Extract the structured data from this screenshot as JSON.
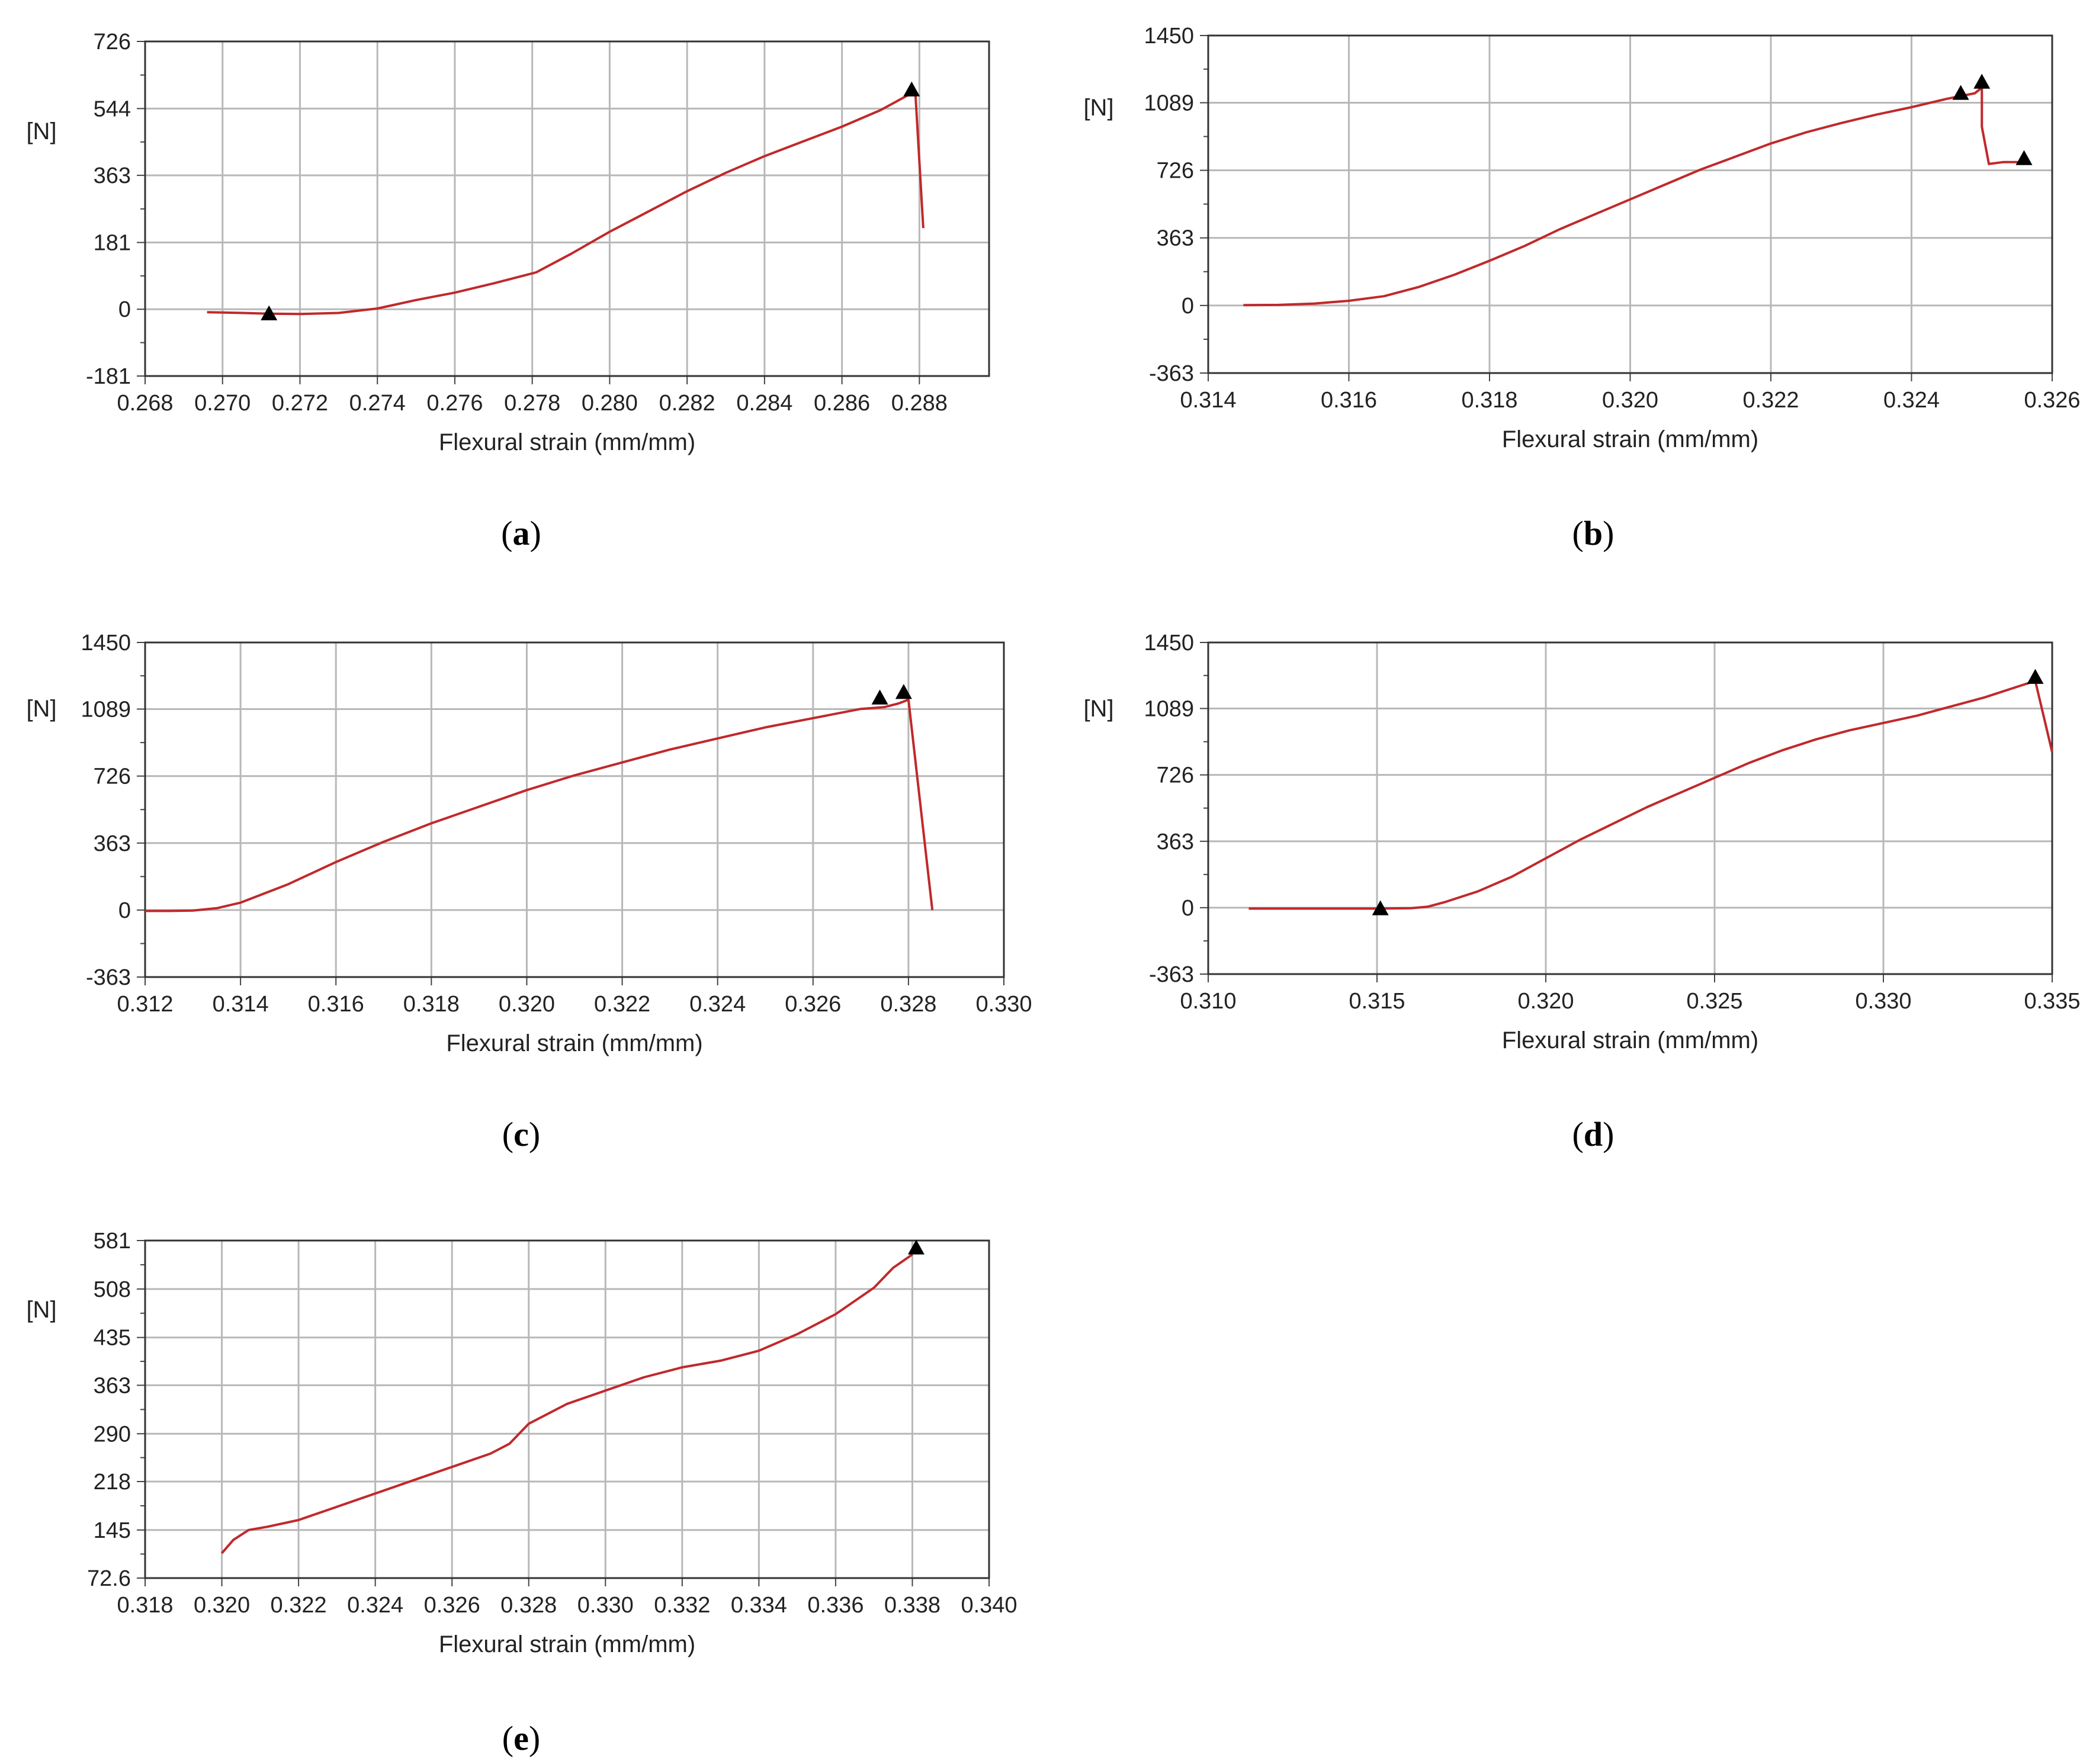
{
  "chart_data": [
    {
      "type": "line",
      "panel": "a",
      "xlabel": "Flexural strain (mm/mm)",
      "ylabel": "[N]",
      "xlim": [
        0.268,
        0.2898
      ],
      "ylim": [
        -181,
        726
      ],
      "x_ticks": [
        "0.268",
        "0.270",
        "0.272",
        "0.274",
        "0.276",
        "0.278",
        "0.280",
        "0.282",
        "0.284",
        "0.286",
        "0.288"
      ],
      "y_ticks": [
        "-181",
        "0",
        "181",
        "363",
        "544",
        "726"
      ],
      "grid": true,
      "series": [
        {
          "color": "#c0292b",
          "x": [
            0.2696,
            0.2705,
            0.2712,
            0.272,
            0.273,
            0.274,
            0.275,
            0.276,
            0.277,
            0.2781,
            0.279,
            0.28,
            0.281,
            0.282,
            0.283,
            0.284,
            0.285,
            0.286,
            0.287,
            0.2877,
            0.2879,
            0.2881
          ],
          "y": [
            -8,
            -10,
            -12,
            -13,
            -10,
            2,
            25,
            45,
            70,
            100,
            150,
            210,
            265,
            320,
            370,
            415,
            455,
            495,
            540,
            580,
            580,
            220
          ]
        }
      ],
      "markers": [
        {
          "x": 0.2712,
          "y": -12
        },
        {
          "x": 0.2878,
          "y": 595
        }
      ]
    },
    {
      "type": "line",
      "panel": "b",
      "xlabel": "Flexural strain (mm/mm)",
      "ylabel": "[N]",
      "xlim": [
        0.314,
        0.326
      ],
      "ylim": [
        -363,
        1450
      ],
      "x_ticks": [
        "0.314",
        "0.316",
        "0.318",
        "0.320",
        "0.322",
        "0.324",
        "0.326"
      ],
      "y_ticks": [
        "-363",
        "0",
        "363",
        "726",
        "1089",
        "1450"
      ],
      "grid": true,
      "series": [
        {
          "color": "#c0292b",
          "x": [
            0.3145,
            0.315,
            0.3155,
            0.316,
            0.3165,
            0.317,
            0.3175,
            0.318,
            0.3185,
            0.319,
            0.3195,
            0.32,
            0.3205,
            0.321,
            0.3215,
            0.322,
            0.3225,
            0.323,
            0.3235,
            0.324,
            0.3245,
            0.3249,
            0.325,
            0.325,
            0.3251,
            0.3253,
            0.3255,
            0.3256
          ],
          "y": [
            2,
            3,
            10,
            25,
            50,
            100,
            165,
            240,
            320,
            410,
            490,
            570,
            650,
            730,
            800,
            870,
            930,
            980,
            1025,
            1065,
            1110,
            1140,
            1170,
            960,
            760,
            770,
            770,
            760
          ]
        }
      ],
      "markers": [
        {
          "x": 0.3247,
          "y": 1140
        },
        {
          "x": 0.325,
          "y": 1200
        },
        {
          "x": 0.3256,
          "y": 790
        }
      ]
    },
    {
      "type": "line",
      "panel": "c",
      "xlabel": "Flexural strain (mm/mm)",
      "ylabel": "[N]",
      "xlim": [
        0.312,
        0.33
      ],
      "ylim": [
        -363,
        1450
      ],
      "x_ticks": [
        "0.312",
        "0.314",
        "0.316",
        "0.318",
        "0.320",
        "0.322",
        "0.324",
        "0.326",
        "0.328",
        "0.330"
      ],
      "y_ticks": [
        "-363",
        "0",
        "363",
        "726",
        "1089",
        "1450"
      ],
      "grid": true,
      "series": [
        {
          "color": "#c0292b",
          "x": [
            0.312,
            0.3125,
            0.313,
            0.3135,
            0.314,
            0.315,
            0.316,
            0.317,
            0.318,
            0.319,
            0.32,
            0.321,
            0.322,
            0.323,
            0.324,
            0.325,
            0.326,
            0.327,
            0.3275,
            0.3278,
            0.328,
            0.3285
          ],
          "y": [
            -5,
            -5,
            -3,
            10,
            40,
            140,
            260,
            370,
            470,
            560,
            650,
            730,
            800,
            870,
            930,
            990,
            1040,
            1090,
            1100,
            1120,
            1140,
            0
          ]
        }
      ],
      "markers": [
        {
          "x": 0.3274,
          "y": 1150
        },
        {
          "x": 0.3279,
          "y": 1180
        }
      ]
    },
    {
      "type": "line",
      "panel": "d",
      "xlabel": "Flexural strain (mm/mm)",
      "ylabel": "[N]",
      "xlim": [
        0.31,
        0.335
      ],
      "ylim": [
        -363,
        1450
      ],
      "x_ticks": [
        "0.310",
        "0.315",
        "0.320",
        "0.325",
        "0.330",
        "0.335"
      ],
      "y_ticks": [
        "-363",
        "0",
        "363",
        "726",
        "1089",
        "1450"
      ],
      "grid": true,
      "series": [
        {
          "color": "#c0292b",
          "x": [
            0.3112,
            0.313,
            0.315,
            0.316,
            0.3165,
            0.317,
            0.318,
            0.319,
            0.32,
            0.321,
            0.322,
            0.323,
            0.324,
            0.325,
            0.326,
            0.327,
            0.328,
            0.329,
            0.33,
            0.331,
            0.332,
            0.333,
            0.334,
            0.3345,
            0.335
          ],
          "y": [
            -5,
            -5,
            -5,
            -3,
            5,
            30,
            90,
            170,
            270,
            370,
            460,
            550,
            630,
            710,
            790,
            860,
            920,
            970,
            1010,
            1050,
            1100,
            1150,
            1210,
            1240,
            850
          ]
        }
      ],
      "markers": [
        {
          "x": 0.3151,
          "y": -5
        },
        {
          "x": 0.3345,
          "y": 1260
        }
      ]
    },
    {
      "type": "line",
      "panel": "e",
      "xlabel": "Flexural strain (mm/mm)",
      "ylabel": "[N]",
      "xlim": [
        0.318,
        0.34
      ],
      "ylim": [
        72.6,
        581
      ],
      "x_ticks": [
        "0.318",
        "0.320",
        "0.322",
        "0.324",
        "0.326",
        "0.328",
        "0.330",
        "0.332",
        "0.334",
        "0.336",
        "0.338",
        "0.340"
      ],
      "y_ticks": [
        "72.6",
        "145",
        "218",
        "290",
        "363",
        "435",
        "508",
        "581"
      ],
      "grid": true,
      "series": [
        {
          "color": "#c0292b",
          "x": [
            0.32,
            0.3203,
            0.3207,
            0.3212,
            0.322,
            0.323,
            0.324,
            0.325,
            0.326,
            0.327,
            0.3275,
            0.328,
            0.329,
            0.33,
            0.331,
            0.332,
            0.333,
            0.334,
            0.335,
            0.336,
            0.337,
            0.3375,
            0.338
          ],
          "y": [
            110,
            130,
            145,
            150,
            160,
            180,
            200,
            220,
            240,
            260,
            275,
            305,
            335,
            355,
            375,
            390,
            400,
            415,
            440,
            470,
            510,
            540,
            560
          ]
        }
      ],
      "markers": [
        {
          "x": 0.3381,
          "y": 570
        }
      ]
    }
  ],
  "panel_labels": [
    "(a)",
    "(b)",
    "(c)",
    "(d)",
    "(e)"
  ],
  "colors": {
    "line": "#c0292b",
    "grid": "#b8b8b8",
    "marker": "#000000"
  }
}
